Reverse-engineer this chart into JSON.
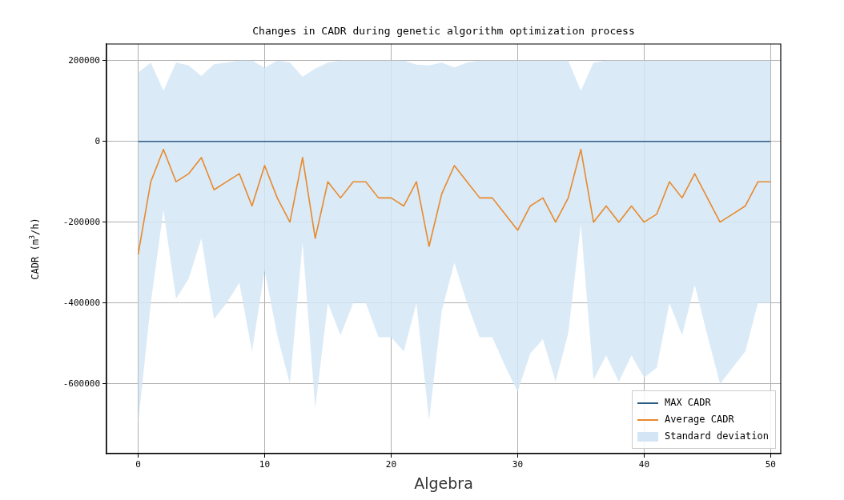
{
  "chart_data": {
    "type": "line",
    "title": "Changes in CADR during genetic algorithm optimization process",
    "xlabel": "Algebra",
    "ylabel": "CADR (m$^{3}$/h)",
    "x": [
      0,
      1,
      2,
      3,
      4,
      5,
      6,
      7,
      8,
      9,
      10,
      11,
      12,
      13,
      14,
      15,
      16,
      17,
      18,
      19,
      20,
      21,
      22,
      23,
      24,
      25,
      26,
      27,
      28,
      29,
      30,
      31,
      32,
      33,
      34,
      35,
      36,
      37,
      38,
      39,
      40,
      41,
      42,
      43,
      44,
      45,
      46,
      47,
      48,
      49,
      50
    ],
    "series": [
      {
        "name": "MAX CADR",
        "type": "line",
        "color": "#2b5d84",
        "values": [
          0,
          0,
          0,
          0,
          0,
          0,
          0,
          0,
          0,
          0,
          0,
          0,
          0,
          0,
          0,
          0,
          0,
          0,
          0,
          0,
          0,
          0,
          0,
          0,
          0,
          0,
          0,
          0,
          0,
          0,
          0,
          0,
          0,
          0,
          0,
          0,
          0,
          0,
          0,
          0,
          0,
          0,
          0,
          0,
          0,
          0,
          0,
          0,
          0,
          0,
          0
        ]
      },
      {
        "name": "Average CADR",
        "type": "line",
        "color": "#e8892c",
        "values": [
          -280000,
          -100000,
          -20000,
          -100000,
          -80000,
          -40000,
          -120000,
          -100000,
          -80000,
          -160000,
          -60000,
          -140000,
          -200000,
          -40000,
          -240000,
          -100000,
          -140000,
          -100000,
          -100000,
          -140000,
          -140000,
          -160000,
          -100000,
          -260000,
          -130000,
          -60000,
          -100000,
          -140000,
          -140000,
          -180000,
          -220000,
          -160000,
          -140000,
          -200000,
          -140000,
          -20000,
          -200000,
          -160000,
          -200000,
          -160000,
          -200000,
          -180000,
          -100000,
          -140000,
          -80000,
          -140000,
          -200000,
          -180000,
          -160000,
          -100000,
          -100000
        ]
      },
      {
        "name": "Standard deviation",
        "type": "area",
        "color": "#d4e6f6",
        "values": [
          null,
          null,
          null,
          null,
          null,
          null,
          null,
          null,
          null,
          null,
          null,
          null,
          null,
          null,
          null,
          null,
          null,
          null,
          null,
          null,
          null,
          null,
          null,
          null,
          null,
          null,
          null,
          null,
          null,
          null,
          null,
          null,
          null,
          null,
          null,
          null,
          null,
          null,
          null,
          null,
          null,
          null,
          null,
          null,
          null,
          null,
          null,
          null,
          null,
          null,
          null
        ],
        "upper": [
          170000,
          195000,
          125000,
          195000,
          188000,
          162000,
          191000,
          195000,
          200000,
          200000,
          182000,
          200000,
          195000,
          160000,
          180000,
          195000,
          200000,
          200000,
          200000,
          200000,
          200000,
          200000,
          190000,
          188000,
          195000,
          183000,
          195000,
          200000,
          200000,
          200000,
          200000,
          200000,
          200000,
          200000,
          200000,
          125000,
          195000,
          200000,
          200000,
          200000,
          200000,
          200000,
          200000,
          200000,
          200000,
          200000,
          200000,
          200000,
          200000,
          200000,
          200000
        ],
        "lower": [
          -700000,
          -400000,
          -170000,
          -390000,
          -340000,
          -240000,
          -440000,
          -400000,
          -350000,
          -520000,
          -320000,
          -480000,
          -600000,
          -250000,
          -660000,
          -400000,
          -480000,
          -400000,
          -400000,
          -485000,
          -485000,
          -520000,
          -400000,
          -690000,
          -420000,
          -300000,
          -400000,
          -485000,
          -485000,
          -555000,
          -620000,
          -525000,
          -490000,
          -595000,
          -475000,
          -205000,
          -590000,
          -530000,
          -595000,
          -530000,
          -585000,
          -560000,
          -400000,
          -480000,
          -355000,
          -480000,
          -600000,
          -560000,
          -520000,
          -400000,
          -400000
        ]
      }
    ],
    "xlim": [
      -2.5,
      50.8
    ],
    "ylim": [
      -773000,
      241000
    ],
    "xticks": [
      0,
      10,
      20,
      30,
      40,
      50
    ],
    "yticks": [
      -600000,
      -400000,
      -200000,
      0,
      200000
    ],
    "grid": true,
    "legend": "bottom right"
  }
}
